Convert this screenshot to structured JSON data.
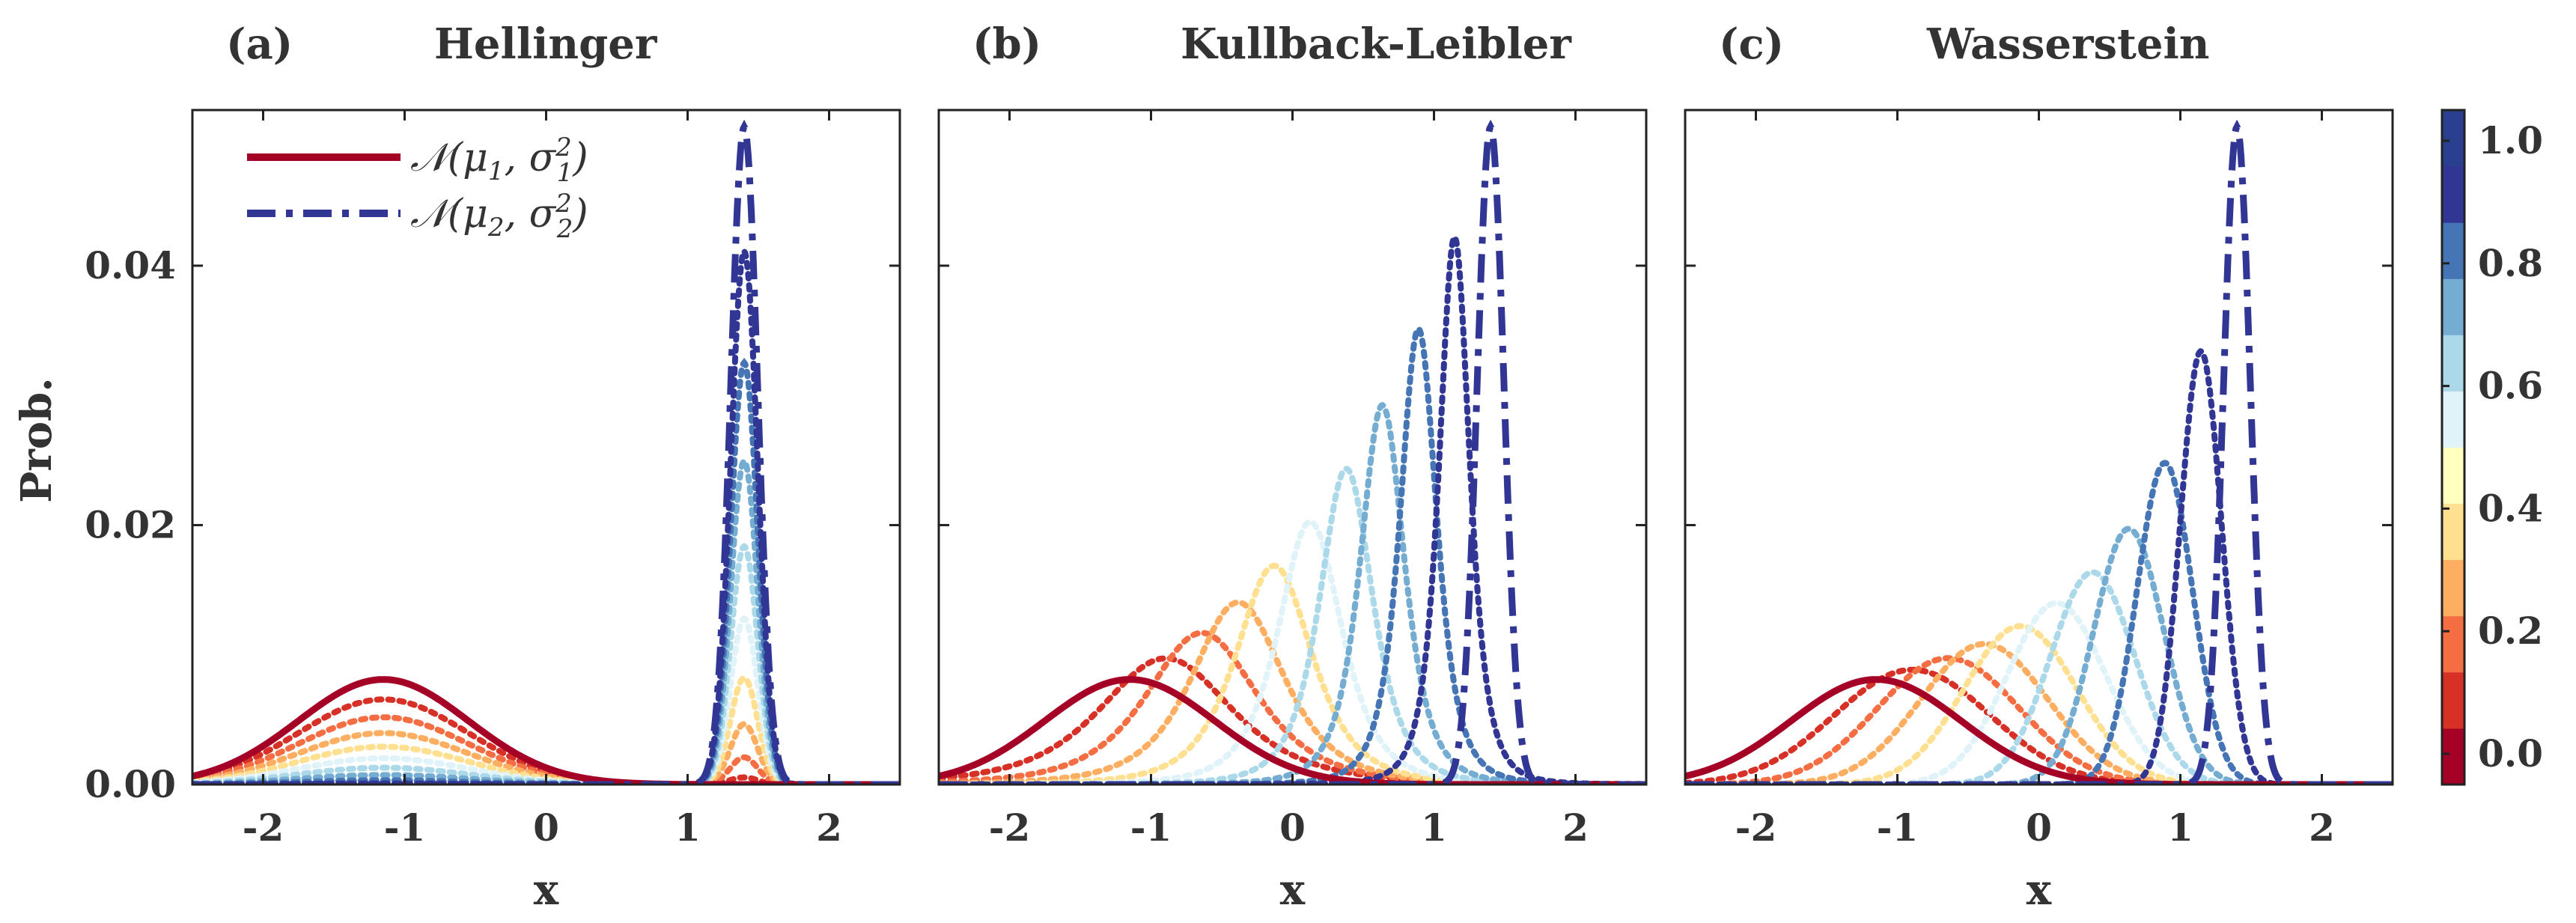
{
  "figure": {
    "ylabel": "Prob.",
    "legend": {
      "placement": "top-left",
      "entries": [
        {
          "label": "N(μ1, σ1²)",
          "math": {
            "base": "𝒩(μ",
            "sub1": "1",
            "mid": ", σ",
            "sub2": "1",
            "sup": "2",
            "end": ")"
          },
          "style": "solid",
          "color": "#a50026"
        },
        {
          "label": "N(μ2, σ2²)",
          "math": {
            "base": "𝒩(μ",
            "sub1": "2",
            "mid": ", σ",
            "sub2": "2",
            "sup": "2",
            "end": ")"
          },
          "style": "dashdot",
          "color": "#313695"
        }
      ]
    },
    "colorbar": {
      "colors": [
        "#a50026",
        "#d73027",
        "#f46d43",
        "#fdae61",
        "#fee090",
        "#ffffbf",
        "#e0f3f8",
        "#abd9e9",
        "#74add1",
        "#4575b4",
        "#313695",
        "#2a3f8f"
      ],
      "range": [
        -0.05,
        1.05
      ],
      "ticks": [
        0.0,
        0.2,
        0.4,
        0.6,
        0.8,
        1.0
      ],
      "tick_labels": [
        "0.0",
        "0.2",
        "0.4",
        "0.6",
        "0.8",
        "1.0"
      ]
    }
  },
  "chart_data": [
    {
      "type": "line",
      "panel_label": "(a)",
      "title": "Hellinger",
      "method": "hellinger",
      "xlabel": "x",
      "ylabel": "Prob.",
      "xlim": [
        -2.5,
        2.5
      ],
      "ylim": [
        0,
        0.052
      ],
      "xticks": [
        -2,
        -1,
        0,
        1,
        2
      ],
      "xtick_labels": [
        "-2",
        "-1",
        "0",
        "1",
        "2"
      ],
      "yticks": [
        0.0,
        0.02,
        0.04
      ],
      "ytick_labels": [
        "0.00",
        "0.02",
        "0.04"
      ],
      "show_yticklabels": true,
      "endpoints": {
        "mu1": -1.15,
        "sigma1": 0.6,
        "mu2": 1.4,
        "sigma2": 0.095,
        "peak1": 0.0081,
        "peak2": 0.0507
      },
      "t_values": [
        0.1,
        0.2,
        0.3,
        0.4,
        0.5,
        0.6,
        0.7,
        0.8,
        0.9
      ],
      "series": [
        {
          "name": "N(μ1,σ1²)",
          "peak_x": -1.15,
          "peak_y": 0.0081
        },
        {
          "name": "N(μ2,σ2²)",
          "peak_x": 1.4,
          "peak_y": 0.0507
        }
      ]
    },
    {
      "type": "line",
      "panel_label": "(b)",
      "title": "Kullback-Leibler",
      "method": "kl",
      "xlabel": "x",
      "ylabel": "",
      "xlim": [
        -2.5,
        2.5
      ],
      "ylim": [
        0,
        0.052
      ],
      "xticks": [
        -2,
        -1,
        0,
        1,
        2
      ],
      "xtick_labels": [
        "-2",
        "-1",
        "0",
        "1",
        "2"
      ],
      "yticks": [
        0.0,
        0.02,
        0.04
      ],
      "ytick_labels": [
        "",
        "",
        ""
      ],
      "show_yticklabels": false,
      "endpoints": {
        "mu1": -1.15,
        "sigma1": 0.6,
        "mu2": 1.4,
        "sigma2": 0.095,
        "peak1": 0.0081,
        "peak2": 0.0507
      },
      "t_values": [
        0.1,
        0.2,
        0.3,
        0.4,
        0.5,
        0.6,
        0.7,
        0.8,
        0.9
      ],
      "series": [
        {
          "name": "N(μ1,σ1²)",
          "peak_x": -1.15,
          "peak_y": 0.0081
        },
        {
          "name": "N(μ2,σ2²)",
          "peak_x": 1.4,
          "peak_y": 0.0507
        }
      ]
    },
    {
      "type": "line",
      "panel_label": "(c)",
      "title": "Wasserstein",
      "method": "wasserstein",
      "xlabel": "x",
      "ylabel": "",
      "xlim": [
        -2.5,
        2.5
      ],
      "ylim": [
        0,
        0.052
      ],
      "xticks": [
        -2,
        -1,
        0,
        1,
        2
      ],
      "xtick_labels": [
        "-2",
        "-1",
        "0",
        "1",
        "2"
      ],
      "yticks": [
        0.0,
        0.02,
        0.04
      ],
      "ytick_labels": [
        "",
        "",
        ""
      ],
      "show_yticklabels": false,
      "endpoints": {
        "mu1": -1.15,
        "sigma1": 0.6,
        "mu2": 1.4,
        "sigma2": 0.095,
        "peak1": 0.0081,
        "peak2": 0.0507
      },
      "t_values": [
        0.1,
        0.2,
        0.3,
        0.4,
        0.5,
        0.6,
        0.7,
        0.8,
        0.9
      ],
      "series": [
        {
          "name": "N(μ1,σ1²)",
          "peak_x": -1.15,
          "peak_y": 0.0081
        },
        {
          "name": "N(μ2,σ2²)",
          "peak_x": 1.4,
          "peak_y": 0.0507
        }
      ]
    }
  ]
}
